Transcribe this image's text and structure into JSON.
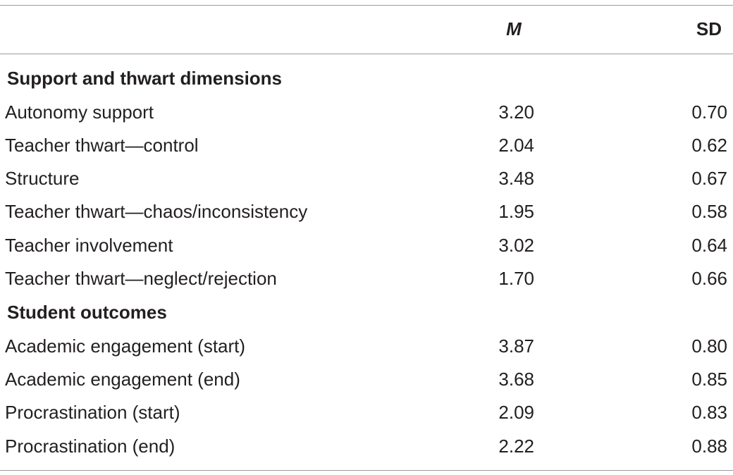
{
  "header": {
    "col_m": "M",
    "col_sd": "SD"
  },
  "sections": [
    {
      "title": "Support and thwart dimensions",
      "rows": [
        {
          "label": "Autonomy support",
          "m": "3.20",
          "sd": "0.70"
        },
        {
          "label": "Teacher thwart—control",
          "m": "2.04",
          "sd": "0.62"
        },
        {
          "label": "Structure",
          "m": "3.48",
          "sd": "0.67"
        },
        {
          "label": "Teacher thwart—chaos/inconsistency",
          "m": "1.95",
          "sd": "0.58"
        },
        {
          "label": "Teacher involvement",
          "m": "3.02",
          "sd": "0.64"
        },
        {
          "label": "Teacher thwart—neglect/rejection",
          "m": "1.70",
          "sd": "0.66"
        }
      ]
    },
    {
      "title": "Student outcomes",
      "rows": [
        {
          "label": "Academic engagement (start)",
          "m": "3.87",
          "sd": "0.80"
        },
        {
          "label": "Academic engagement (end)",
          "m": "3.68",
          "sd": "0.85"
        },
        {
          "label": "Procrastination (start)",
          "m": "2.09",
          "sd": "0.83"
        },
        {
          "label": "Procrastination (end)",
          "m": "2.22",
          "sd": "0.88"
        }
      ]
    }
  ]
}
